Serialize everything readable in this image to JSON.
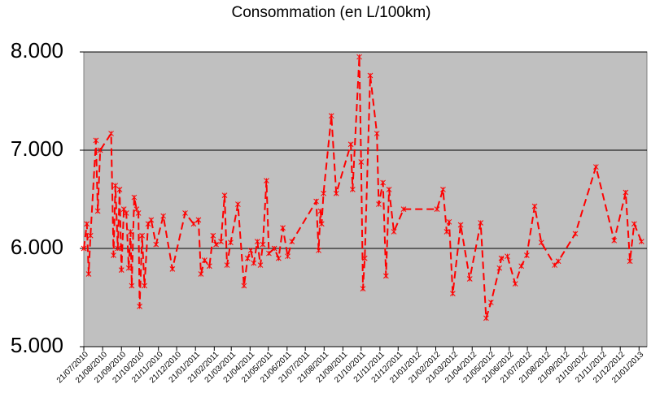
{
  "chart_data": {
    "type": "line",
    "title": "Consommation (en L/100km)",
    "x": [
      "21/07/2010",
      "26/07/2010",
      "29/07/2010",
      "01/08/2010",
      "10/08/2010",
      "13/08/2010",
      "17/08/2010",
      "04/09/2010",
      "08/09/2010",
      "11/09/2010",
      "15/09/2010",
      "18/09/2010",
      "21/09/2010",
      "25/09/2010",
      "29/09/2010",
      "03/10/2010",
      "06/10/2010",
      "08/10/2010",
      "12/10/2010",
      "16/10/2010",
      "19/10/2010",
      "21/10/2010",
      "25/10/2010",
      "29/10/2010",
      "04/11/2010",
      "09/11/2010",
      "17/11/2010",
      "29/11/2010",
      "14/12/2010",
      "04/01/2011",
      "18/01/2011",
      "26/01/2011",
      "30/01/2011",
      "05/02/2011",
      "13/02/2011",
      "19/02/2011",
      "24/02/2011",
      "04/03/2011",
      "10/03/2011",
      "14/03/2011",
      "20/03/2011",
      "01/04/2011",
      "11/04/2011",
      "17/04/2011",
      "22/04/2011",
      "27/04/2011",
      "03/05/2011",
      "08/05/2011",
      "12/05/2011",
      "18/05/2011",
      "22/05/2011",
      "31/05/2011",
      "07/06/2011",
      "14/06/2011",
      "22/06/2011",
      "29/06/2011",
      "08/08/2011",
      "12/08/2011",
      "15/08/2011",
      "17/08/2011",
      "20/08/2011",
      "02/09/2011",
      "10/09/2011",
      "04/10/2011",
      "07/10/2011",
      "18/10/2011",
      "21/10/2011",
      "24/10/2011",
      "27/10/2011",
      "05/11/2011",
      "16/11/2011",
      "19/11/2011",
      "26/11/2011",
      "01/12/2011",
      "06/12/2011",
      "14/12/2011",
      "30/12/2011",
      "23/02/2012",
      "04/03/2012",
      "10/03/2012",
      "14/03/2012",
      "20/03/2012",
      "02/04/2012",
      "17/04/2012",
      "05/05/2012",
      "14/05/2012",
      "22/05/2012",
      "05/06/2012",
      "08/06/2012",
      "18/06/2012",
      "01/07/2012",
      "11/07/2012",
      "20/07/2012",
      "02/08/2012",
      "13/08/2012",
      "04/09/2012",
      "10/09/2012",
      "08/10/2012",
      "11/11/2012",
      "11/12/2012",
      "30/12/2012",
      "06/01/2013",
      "13/01/2013",
      "25/01/2013"
    ],
    "series": [
      {
        "name": "Consommation",
        "color": "#ff0000",
        "values": [
          6.0,
          6.25,
          5.74,
          6.13,
          7.1,
          6.38,
          7.0,
          7.17,
          5.93,
          6.64,
          6.0,
          6.6,
          5.78,
          6.4,
          6.36,
          5.8,
          6.17,
          5.62,
          6.52,
          6.4,
          6.36,
          5.41,
          6.13,
          5.62,
          6.25,
          6.29,
          6.04,
          6.33,
          5.79,
          6.36,
          6.25,
          6.29,
          5.74,
          5.88,
          5.82,
          6.13,
          6.04,
          6.07,
          6.54,
          5.83,
          6.06,
          6.45,
          5.62,
          5.9,
          5.98,
          5.85,
          6.07,
          5.83,
          6.04,
          6.69,
          5.95,
          6.0,
          5.9,
          6.21,
          5.92,
          6.07,
          6.48,
          5.98,
          6.38,
          6.25,
          6.56,
          7.35,
          6.56,
          7.06,
          6.6,
          7.95,
          6.88,
          5.59,
          5.9,
          7.76,
          7.17,
          6.45,
          6.67,
          5.72,
          6.6,
          6.17,
          6.4,
          6.4,
          6.6,
          6.17,
          6.27,
          5.54,
          6.24,
          5.69,
          6.26,
          5.29,
          5.45,
          5.8,
          5.9,
          5.92,
          5.64,
          5.82,
          5.93,
          6.43,
          6.06,
          5.83,
          5.87,
          6.15,
          6.83,
          6.08,
          6.57,
          5.87,
          6.25,
          6.07
        ]
      }
    ],
    "xlim": [
      "21/07/2010",
      "03/02/2013"
    ],
    "xticks": [
      "21/07/2010",
      "21/08/2010",
      "21/09/2010",
      "21/10/2010",
      "21/11/2010",
      "21/12/2010",
      "21/01/2011",
      "21/02/2011",
      "21/03/2011",
      "21/04/2011",
      "21/05/2011",
      "21/06/2011",
      "21/07/2011",
      "21/08/2011",
      "21/09/2011",
      "21/10/2011",
      "21/11/2011",
      "21/12/2011",
      "21/01/2012",
      "21/02/2012",
      "21/03/2012",
      "21/04/2012",
      "21/05/2012",
      "21/06/2012",
      "21/07/2012",
      "21/08/2012",
      "21/09/2012",
      "21/10/2012",
      "21/11/2012",
      "21/12/2012",
      "21/01/2013"
    ],
    "ylim": [
      5,
      8
    ],
    "yticks": [
      {
        "value": 5,
        "label": "5.000"
      },
      {
        "value": 6,
        "label": "6.000"
      },
      {
        "value": 7,
        "label": "7.000"
      },
      {
        "value": 8,
        "label": "8.000"
      }
    ],
    "grid": true,
    "plot_background": "#c0c0c0"
  }
}
